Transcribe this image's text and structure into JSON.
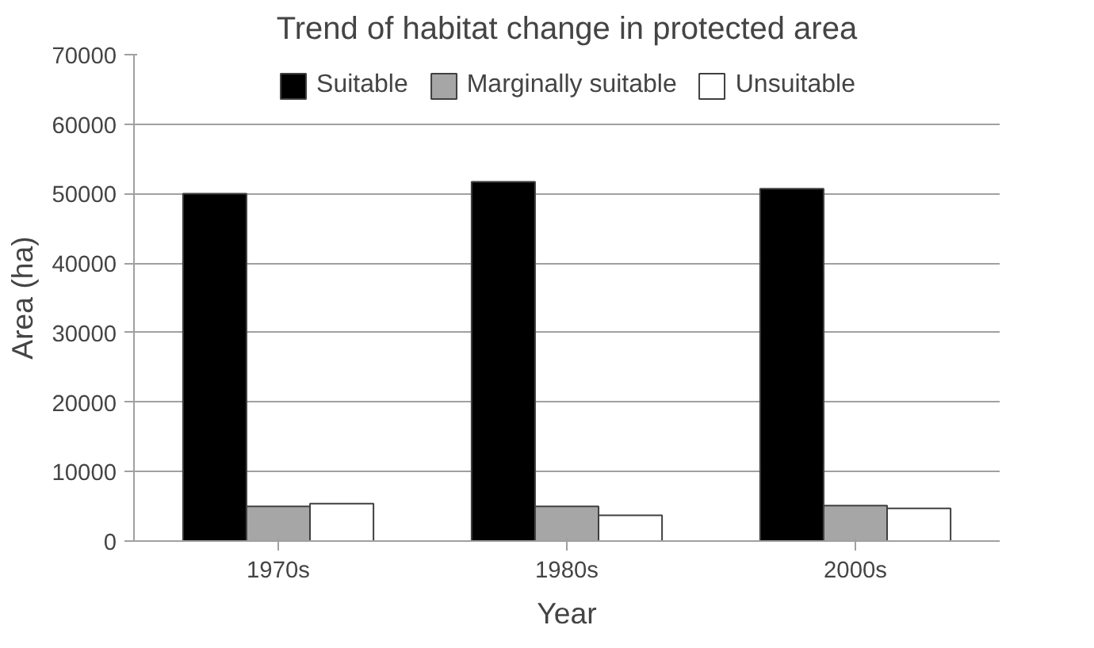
{
  "chart_data": {
    "type": "bar",
    "title": "Trend of habitat change in protected area",
    "xlabel": "Year",
    "ylabel": "Area (ha)",
    "categories": [
      "1970s",
      "1980s",
      "2000s"
    ],
    "series": [
      {
        "name": "Suitable",
        "color": "#000000",
        "values": [
          50000,
          51700,
          50700
        ]
      },
      {
        "name": "Marginally suitable",
        "color": "#a6a6a6",
        "values": [
          5000,
          5000,
          5100
        ]
      },
      {
        "name": "Unsuitable",
        "color": "#ffffff",
        "values": [
          5400,
          3700,
          4700
        ]
      }
    ],
    "ylim": [
      0,
      70000
    ],
    "yticks": [
      0,
      10000,
      20000,
      30000,
      40000,
      50000,
      60000,
      70000
    ],
    "grid": "y",
    "legend": "top"
  }
}
